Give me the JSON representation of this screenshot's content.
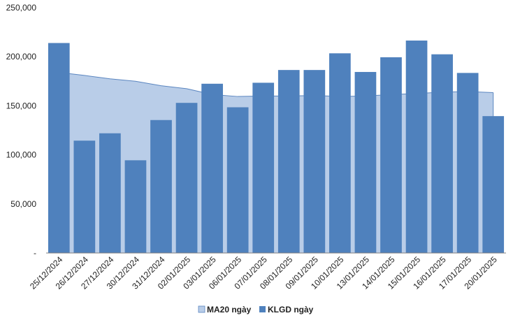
{
  "chart_data": {
    "type": "bar",
    "categories": [
      "25/12/2024",
      "26/12/2024",
      "27/12/2024",
      "30/12/2024",
      "31/12/2024",
      "02/01/2025",
      "03/01/2025",
      "06/01/2025",
      "07/01/2025",
      "08/01/2025",
      "09/01/2025",
      "10/01/2025",
      "13/01/2025",
      "14/01/2025",
      "15/01/2025",
      "16/01/2025",
      "17/01/2025",
      "20/01/2025"
    ],
    "series": [
      {
        "name": "MA20 ngày",
        "type": "area",
        "color": "#b9cde8",
        "stroke": "#5b86c0",
        "values": [
          184000,
          181000,
          177500,
          175000,
          170500,
          167500,
          161500,
          159500,
          160000,
          160000,
          160500,
          159500,
          160000,
          161500,
          162500,
          164000,
          164500,
          163500
        ]
      },
      {
        "name": "KLGD ngày",
        "type": "bar",
        "color": "#4f81bd",
        "values": [
          214000,
          114500,
          122000,
          94500,
          135500,
          153000,
          172500,
          148500,
          173500,
          186500,
          186500,
          203500,
          184500,
          199500,
          216500,
          202500,
          183500,
          139500
        ]
      }
    ],
    "y_ticks": [
      "-",
      "50,000",
      "100,000",
      "150,000",
      "200,000",
      "250,000"
    ],
    "ylim": [
      0,
      250000
    ],
    "grid": false,
    "legend": "bottom-center"
  }
}
